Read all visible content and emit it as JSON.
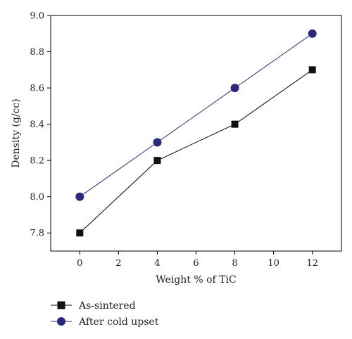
{
  "chart_data": {
    "type": "line",
    "title": "",
    "xlabel": "Weight % of TiC",
    "ylabel": "Density (g/cc)",
    "xlim": [
      -1.5,
      13.5
    ],
    "ylim": [
      7.7,
      9.0
    ],
    "xticks": [
      0,
      2,
      4,
      6,
      8,
      10,
      12
    ],
    "yticks": [
      7.8,
      8.0,
      8.2,
      8.4,
      8.6,
      8.8,
      9.0
    ],
    "xtick_labels": [
      "0",
      "2",
      "4",
      "6",
      "8",
      "10",
      "12"
    ],
    "ytick_labels": [
      "7.8",
      "8.0",
      "8.2",
      "8.4",
      "8.6",
      "8.8",
      "9.0"
    ],
    "grid": false,
    "legend_position": "bottom-left, below plot",
    "series": [
      {
        "name": "As-sintered",
        "marker": "square",
        "color": "#000000",
        "line_color": "#000000",
        "x": [
          0,
          4,
          8,
          12
        ],
        "y": [
          7.8,
          8.2,
          8.4,
          8.7
        ]
      },
      {
        "name": "After cold upset",
        "marker": "circle",
        "color": "#2b2a7a",
        "line_color": "#2b2a7a",
        "x": [
          0,
          4,
          8,
          12
        ],
        "y": [
          8.0,
          8.3,
          8.6,
          8.9
        ]
      }
    ]
  }
}
